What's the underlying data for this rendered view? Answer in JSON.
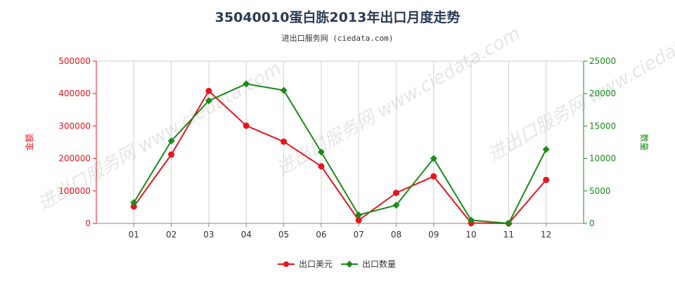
{
  "title": "35040010蛋白胨2013年出口月度走势",
  "subtitle": "进出口服务网 (ciedata.com)",
  "watermark": "进出口服务网 www.ciedata.com",
  "chart_data": {
    "type": "line",
    "categories": [
      "01",
      "02",
      "03",
      "04",
      "05",
      "06",
      "07",
      "08",
      "09",
      "10",
      "11",
      "12"
    ],
    "y_left": {
      "label": "金额",
      "ylim": [
        0,
        500000
      ],
      "ticks": [
        "0",
        "100000",
        "200000",
        "300000",
        "400000",
        "500000"
      ]
    },
    "y_right": {
      "label": "数量",
      "ylim": [
        0,
        25000
      ],
      "ticks": [
        "0",
        "5000",
        "10000",
        "15000",
        "20000",
        "25000"
      ]
    },
    "grid": "vertical",
    "legend_position": "bottom",
    "series": [
      {
        "name": "出口美元",
        "axis": "left",
        "color": "#e8141b",
        "values": [
          52000,
          212000,
          408000,
          301000,
          252000,
          176000,
          10000,
          94000,
          145000,
          1000,
          0,
          134000
        ]
      },
      {
        "name": "出口数量",
        "axis": "right",
        "color": "#1a8a1a",
        "values": [
          3200,
          12700,
          18900,
          21500,
          20500,
          11000,
          1300,
          2800,
          10000,
          500,
          0,
          11400
        ]
      }
    ]
  }
}
